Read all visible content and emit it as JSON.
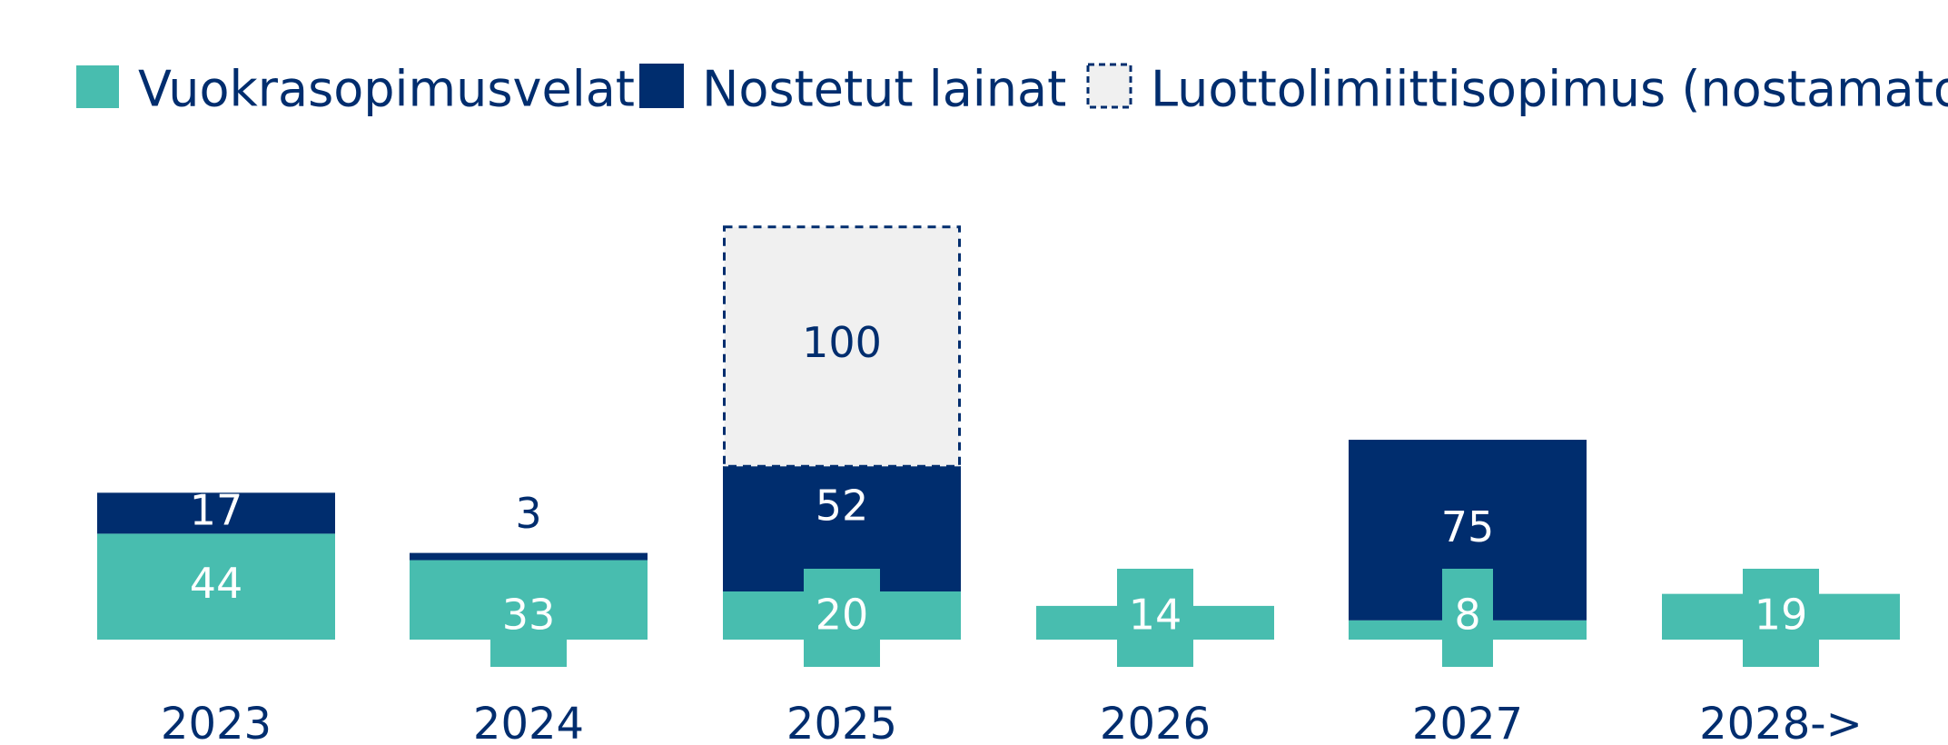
{
  "colors": {
    "lease": "#48BDAF",
    "loans": "#002D6E",
    "credit_fill": "#F0F0F0",
    "credit_border": "#002D6E",
    "text": "#002D6E"
  },
  "legend": [
    {
      "key": "lease",
      "label": "Vuokrasopimusvelat"
    },
    {
      "key": "loans",
      "label": "Nostetut lainat"
    },
    {
      "key": "credit",
      "label": "Luottolimiittisopimus (nostamaton)"
    }
  ],
  "chart_data": {
    "type": "bar",
    "stacked": true,
    "legend_position": "top",
    "grid": false,
    "categories": [
      "2023",
      "2024",
      "2025",
      "2026",
      "2027",
      "2028->"
    ],
    "series": [
      {
        "key": "lease",
        "name": "Vuokrasopimusvelat",
        "values": [
          44,
          33,
          20,
          14,
          8,
          19
        ]
      },
      {
        "key": "loans",
        "name": "Nostetut lainat",
        "values": [
          17,
          3,
          52,
          0,
          75,
          0
        ]
      },
      {
        "key": "credit",
        "name": "Luottolimiittisopimus (nostamaton)",
        "values": [
          0,
          0,
          100,
          0,
          0,
          0
        ]
      }
    ],
    "labels": {
      "lease": [
        "44",
        "33",
        "20",
        "14",
        "8",
        "19"
      ],
      "loans": [
        "17",
        "3",
        "52",
        "",
        "75",
        ""
      ],
      "credit": [
        "",
        "",
        "100",
        "",
        "",
        ""
      ]
    }
  }
}
